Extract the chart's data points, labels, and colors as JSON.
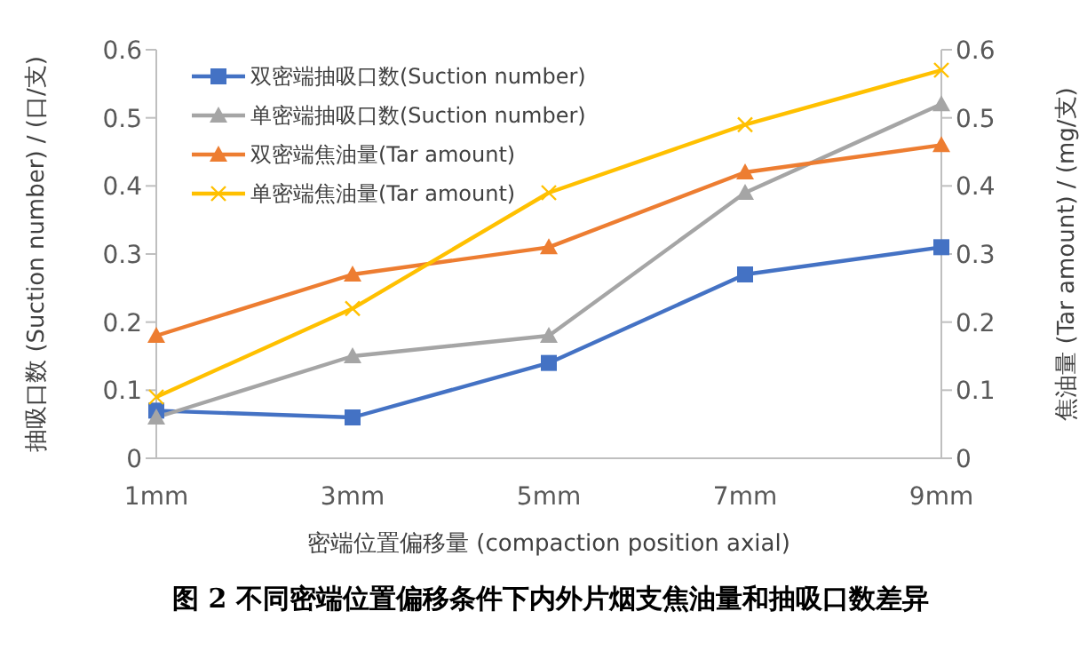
{
  "chart_data": {
    "type": "line",
    "xlabel": "密端位置偏移量 (compaction position axial)",
    "ylabel": "抽吸口数 (Suction number) / (口/支)",
    "y2label": "焦油量 (Tar amount) / (mg/支)",
    "categories": [
      "1mm",
      "3mm",
      "5mm",
      "7mm",
      "9mm"
    ],
    "series": [
      {
        "name": "双密端抽吸口数(Suction number)",
        "color": "#4472c4",
        "marker": "square",
        "values": [
          0.07,
          0.06,
          0.14,
          0.27,
          0.31
        ]
      },
      {
        "name": "单密端抽吸口数(Suction number)",
        "color": "#a5a5a5",
        "marker": "triangle",
        "values": [
          0.06,
          0.15,
          0.18,
          0.39,
          0.52
        ]
      },
      {
        "name": "双密端焦油量(Tar amount)",
        "color": "#ed7d31",
        "marker": "triangle",
        "axis": "y2",
        "values": [
          0.18,
          0.27,
          0.31,
          0.42,
          0.46
        ]
      },
      {
        "name": "单密端焦油量(Tar amount)",
        "color": "#ffc000",
        "marker": "cross",
        "axis": "y2",
        "values": [
          0.09,
          0.22,
          0.39,
          0.49,
          0.57
        ]
      }
    ],
    "ylim": [
      0,
      0.6
    ],
    "yticks": [
      0,
      0.1,
      0.2,
      0.3,
      0.4,
      0.5,
      0.6
    ],
    "y2lim": [
      0,
      0.6
    ],
    "y2ticks": [
      0,
      0.1,
      0.2,
      0.3,
      0.4,
      0.5,
      0.6
    ],
    "grid": false,
    "legend": "top left",
    "line_style": "solid",
    "annotations": [
      "图 2  不同密端位置偏移条件下内外片烟支焦油量和抽吸口数差异"
    ]
  }
}
